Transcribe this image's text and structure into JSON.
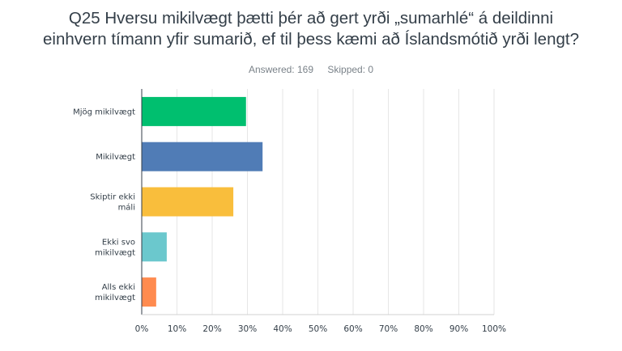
{
  "question": {
    "line1": "Q25 Hversu mikilvægt þætti þér að gert yrði „sumarhlé“ á deildinni",
    "line2": "einhvern tímann yfir sumarið, ef til þess kæmi að Íslandsmótið yrði lengt?"
  },
  "stats": {
    "answered": "Answered: 169",
    "skipped": "Skipped: 0"
  },
  "chart_data": {
    "type": "bar",
    "orientation": "horizontal",
    "categories": [
      [
        "Mjög mikilvægt"
      ],
      [
        "Mikilvægt"
      ],
      [
        "Skiptir ekki",
        "máli"
      ],
      [
        "Ekki svo",
        "mikilvægt"
      ],
      [
        "Alls ekki",
        "mikilvægt"
      ]
    ],
    "values": [
      29.6,
      34.3,
      26.0,
      7.1,
      4.1
    ],
    "colors": [
      "#00bf6f",
      "#507cb6",
      "#f9be3c",
      "#6bc8cd",
      "#ff8b4f"
    ],
    "xlim": [
      0,
      100
    ],
    "xticks": [
      0,
      10,
      20,
      30,
      40,
      50,
      60,
      70,
      80,
      90,
      100
    ],
    "xtick_labels": [
      "0%",
      "10%",
      "20%",
      "30%",
      "40%",
      "50%",
      "60%",
      "70%",
      "80%",
      "90%",
      "100%"
    ],
    "grid": true,
    "gridColor": "#e6e6e6",
    "axisColor": "#333e48"
  }
}
